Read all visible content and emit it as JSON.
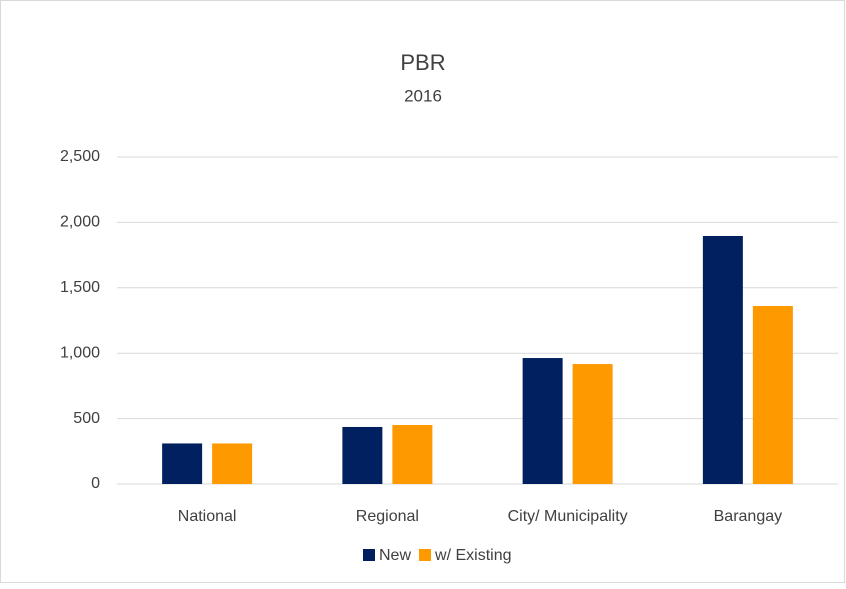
{
  "chart_data": {
    "type": "bar",
    "title": "PBR",
    "subtitle": "2016",
    "categories": [
      "National",
      "Regional",
      "City/ Municipality",
      "Barangay"
    ],
    "series": [
      {
        "name": "New",
        "color": "#002060",
        "values": [
          310,
          436,
          963,
          1896
        ]
      },
      {
        "name": "w/ Existing",
        "color": "#ff9900",
        "values": [
          310,
          451,
          917,
          1361
        ]
      }
    ],
    "ylim": [
      0,
      2500
    ],
    "yticks": [
      0,
      500,
      {
        "value": 1000,
        "label": "1,000"
      },
      {
        "value": 1500,
        "label": "1,500"
      },
      {
        "value": 2000,
        "label": "2,000"
      },
      {
        "value": 2500,
        "label": "2,500"
      }
    ],
    "grid": true,
    "legend": "bottom"
  }
}
